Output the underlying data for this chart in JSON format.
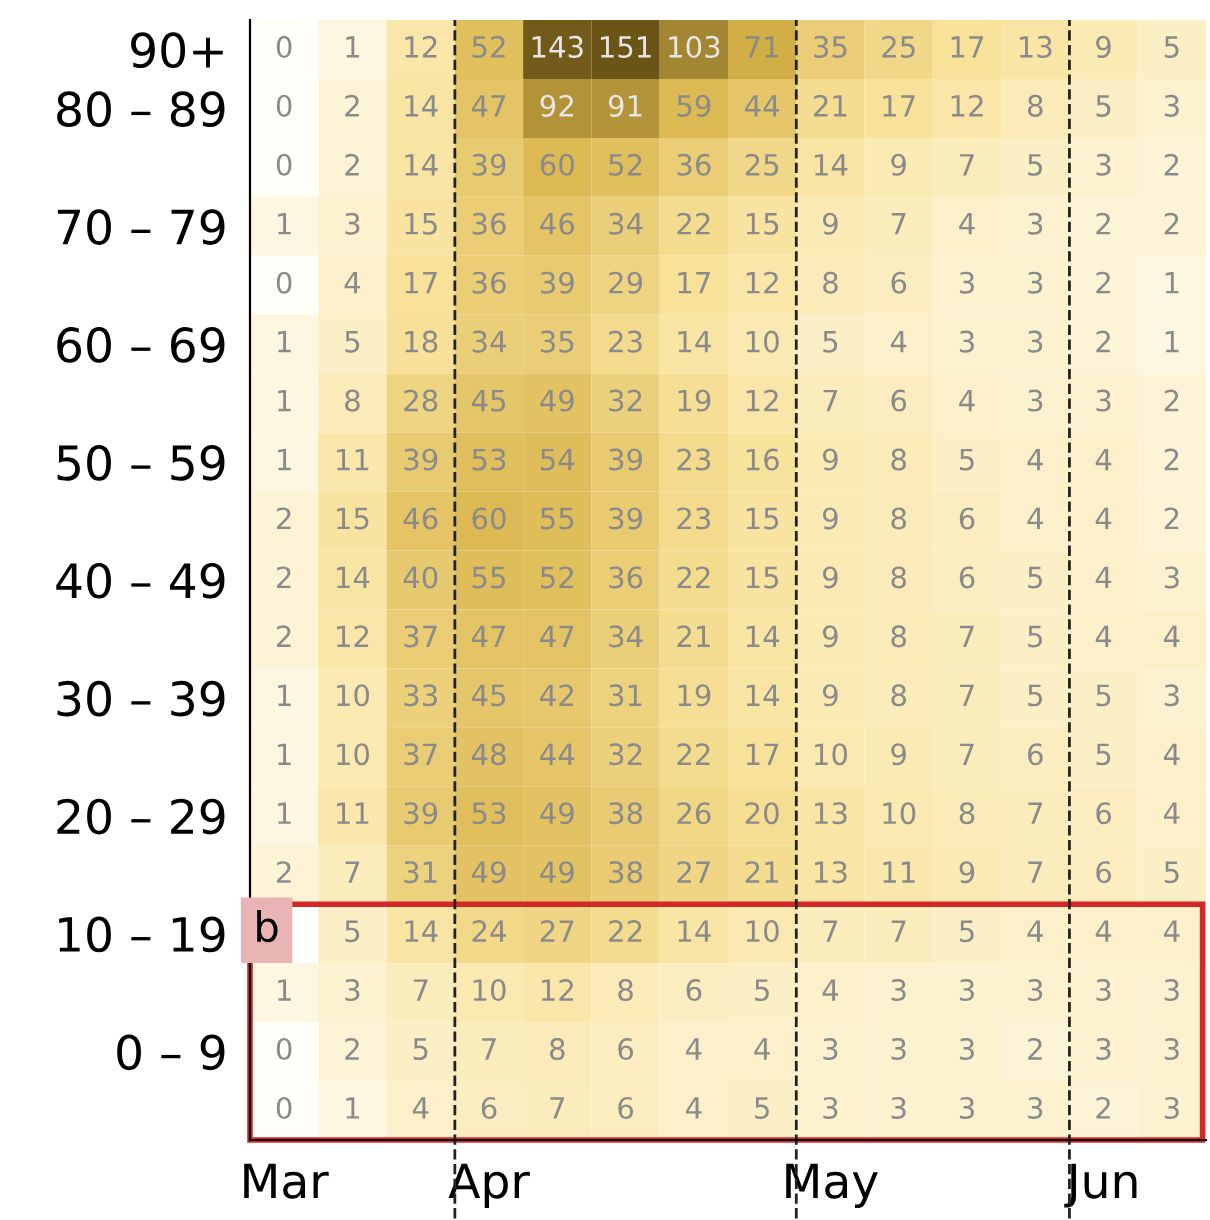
{
  "chart_data": {
    "type": "heatmap",
    "categories": [
      "Mar",
      null,
      null,
      "Apr",
      null,
      null,
      null,
      null,
      "May",
      null,
      null,
      null,
      "Jun",
      null
    ],
    "y_categories": [
      "90+",
      "80 – 89",
      null,
      "70 – 79",
      null,
      "60 – 69",
      null,
      "50 – 59",
      null,
      "40 – 49",
      null,
      "30 – 39",
      null,
      "20 – 29",
      null,
      "10 – 19",
      null,
      "0 – 9",
      null
    ],
    "cells": [
      [
        0,
        1,
        12,
        52,
        143,
        151,
        103,
        71,
        35,
        25,
        17,
        13,
        9,
        5
      ],
      [
        0,
        2,
        14,
        47,
        92,
        91,
        59,
        44,
        21,
        17,
        12,
        8,
        5,
        3
      ],
      [
        0,
        2,
        14,
        39,
        60,
        52,
        36,
        25,
        14,
        9,
        7,
        5,
        3,
        2
      ],
      [
        1,
        3,
        15,
        36,
        46,
        34,
        22,
        15,
        9,
        7,
        4,
        3,
        2,
        2
      ],
      [
        0,
        4,
        17,
        36,
        39,
        29,
        17,
        12,
        8,
        6,
        3,
        3,
        2,
        1
      ],
      [
        1,
        5,
        18,
        34,
        35,
        23,
        14,
        10,
        5,
        4,
        3,
        3,
        2,
        1
      ],
      [
        1,
        8,
        28,
        45,
        49,
        32,
        19,
        12,
        7,
        6,
        4,
        3,
        3,
        2
      ],
      [
        1,
        11,
        39,
        53,
        54,
        39,
        23,
        16,
        9,
        8,
        5,
        4,
        4,
        2
      ],
      [
        2,
        15,
        46,
        60,
        55,
        39,
        23,
        15,
        9,
        8,
        6,
        4,
        4,
        2
      ],
      [
        2,
        14,
        40,
        55,
        52,
        36,
        22,
        15,
        9,
        8,
        6,
        5,
        4,
        3
      ],
      [
        2,
        12,
        37,
        47,
        47,
        34,
        21,
        14,
        9,
        8,
        7,
        5,
        4,
        4
      ],
      [
        1,
        10,
        33,
        45,
        42,
        31,
        19,
        14,
        9,
        8,
        7,
        5,
        5,
        3
      ],
      [
        1,
        10,
        37,
        48,
        44,
        32,
        22,
        17,
        10,
        9,
        7,
        6,
        5,
        4
      ],
      [
        1,
        11,
        39,
        53,
        49,
        38,
        26,
        20,
        13,
        10,
        8,
        7,
        6,
        4
      ],
      [
        2,
        7,
        31,
        49,
        49,
        38,
        27,
        21,
        13,
        11,
        9,
        7,
        6,
        5
      ],
      [
        null,
        5,
        14,
        24,
        27,
        22,
        14,
        10,
        7,
        7,
        5,
        4,
        4,
        4
      ],
      [
        1,
        3,
        7,
        10,
        12,
        8,
        6,
        5,
        4,
        3,
        3,
        3,
        3,
        3
      ],
      [
        0,
        2,
        5,
        7,
        8,
        6,
        4,
        4,
        3,
        3,
        3,
        2,
        3,
        3
      ],
      [
        0,
        1,
        4,
        6,
        7,
        6,
        4,
        5,
        3,
        3,
        3,
        3,
        2,
        3
      ]
    ],
    "colors": [
      "#fffef8",
      "#f8e29a",
      "#d9b44a",
      "#6a5416"
    ],
    "data_labels": true,
    "annotations": [
      "b"
    ]
  }
}
